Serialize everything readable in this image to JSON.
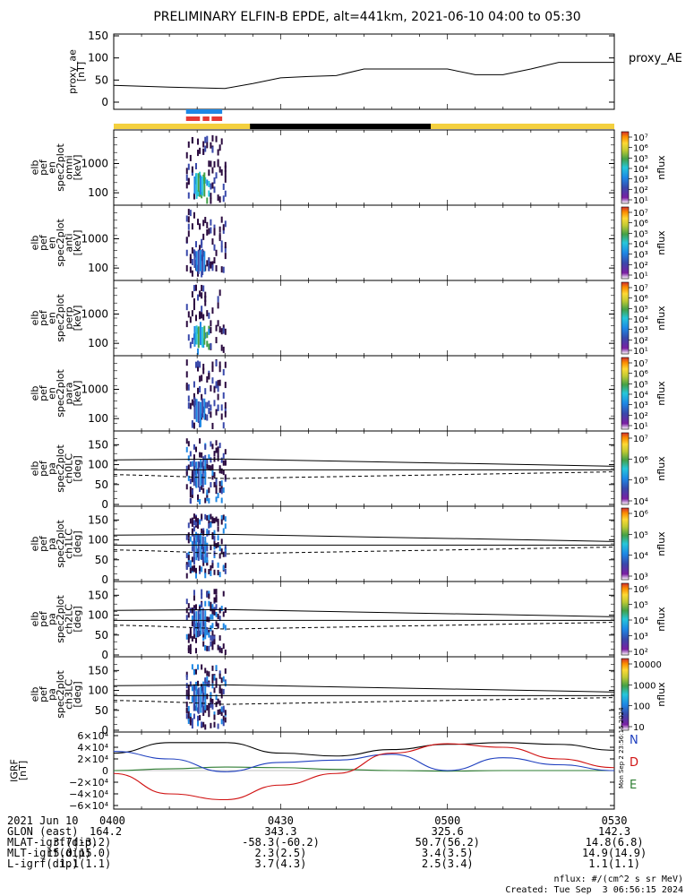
{
  "title": "PRELIMINARY ELFIN-B EPDE, alt=441km, 2021-06-10 04:00 to 05:30",
  "chart_data": {
    "type": "line",
    "time_range": [
      "2021-06-10 04:00",
      "2021-06-10 05:30"
    ],
    "x_tick_labels": [
      "0400",
      "0430",
      "0500",
      "0530"
    ],
    "panels": [
      {
        "id": "proxy_ae",
        "type": "line",
        "ylabel": [
          "proxy_ae",
          "[nT]"
        ],
        "legend": "proxy_AE",
        "ylim": [
          0,
          150
        ],
        "y_ticks": [
          "150",
          "100",
          "50",
          "0"
        ],
        "x_minutes": [
          0,
          10,
          20,
          25,
          30,
          35,
          40,
          45,
          50,
          55,
          60,
          65,
          70,
          75,
          80,
          85,
          90
        ],
        "values": [
          38,
          34,
          31,
          42,
          55,
          58,
          60,
          75,
          75,
          75,
          75,
          62,
          62,
          75,
          90,
          90,
          90
        ]
      },
      {
        "id": "spec_omni",
        "type": "heatmap",
        "ylabel": [
          "elb",
          "pef",
          "en",
          "spec2plot",
          "omni",
          "[keV]"
        ],
        "y_ticks": [
          "1000",
          "100"
        ],
        "colorbar_ticks": [
          "10⁷",
          "10⁶",
          "10⁵",
          "10⁴",
          "10³",
          "10²",
          "10¹"
        ],
        "colorbar_label": "nflux"
      },
      {
        "id": "spec_anti",
        "type": "heatmap",
        "ylabel": [
          "elb",
          "pef",
          "en",
          "spec2plot",
          "anti",
          "[keV]"
        ],
        "y_ticks": [
          "1000",
          "100"
        ],
        "colorbar_ticks": [
          "10⁷",
          "10⁶",
          "10⁵",
          "10⁴",
          "10³",
          "10²",
          "10¹"
        ],
        "colorbar_label": "nflux"
      },
      {
        "id": "spec_perp",
        "type": "heatmap",
        "ylabel": [
          "elb",
          "pef",
          "en",
          "spec2plot",
          "perp",
          "[keV]"
        ],
        "y_ticks": [
          "1000",
          "100"
        ],
        "colorbar_ticks": [
          "10⁷",
          "10⁶",
          "10⁵",
          "10⁴",
          "10³",
          "10²",
          "10¹"
        ],
        "colorbar_label": "nflux"
      },
      {
        "id": "spec_para",
        "type": "heatmap",
        "ylabel": [
          "elb",
          "pef",
          "en",
          "spec2plot",
          "para",
          "[keV]"
        ],
        "y_ticks": [
          "1000",
          "100"
        ],
        "colorbar_ticks": [
          "10⁷",
          "10⁶",
          "10⁵",
          "10⁴",
          "10³",
          "10²",
          "10¹"
        ],
        "colorbar_label": "nflux"
      },
      {
        "id": "pa_ch0",
        "type": "heatmap",
        "ylabel": [
          "elb",
          "pef",
          "pa",
          "spec2plot",
          "ch0LC",
          "[deg]"
        ],
        "y_ticks": [
          "150",
          "100",
          "50",
          "0"
        ],
        "colorbar_ticks": [
          "10⁷",
          "10⁶",
          "10⁵",
          "10⁴"
        ],
        "colorbar_label": "nflux"
      },
      {
        "id": "pa_ch1",
        "type": "heatmap",
        "ylabel": [
          "elb",
          "pef",
          "pa",
          "spec2plot",
          "ch1LC",
          "[deg]"
        ],
        "y_ticks": [
          "150",
          "100",
          "50",
          "0"
        ],
        "colorbar_ticks": [
          "10⁶",
          "10⁵",
          "10⁴",
          "10³"
        ],
        "colorbar_label": "nflux"
      },
      {
        "id": "pa_ch2",
        "type": "heatmap",
        "ylabel": [
          "elb",
          "pef",
          "pa",
          "spec2plot",
          "ch2LC",
          "[deg]"
        ],
        "y_ticks": [
          "150",
          "100",
          "50",
          "0"
        ],
        "colorbar_ticks": [
          "10⁶",
          "10⁵",
          "10⁴",
          "10³",
          "10²"
        ],
        "colorbar_label": "nflux"
      },
      {
        "id": "pa_ch3",
        "type": "heatmap",
        "ylabel": [
          "elb",
          "pef",
          "pa",
          "spec2plot",
          "ch3LC",
          "[deg]"
        ],
        "y_ticks": [
          "150",
          "100",
          "50",
          "0"
        ],
        "colorbar_ticks": [
          "10000",
          "1000",
          "100",
          "10"
        ],
        "colorbar_label": "nflux"
      },
      {
        "id": "igrf",
        "type": "line",
        "ylabel": [
          "IGRF",
          "[nT]"
        ],
        "ylim": [
          -60000,
          60000
        ],
        "y_ticks": [
          "6×10⁴",
          "4×10⁴",
          "2×10⁴",
          "0",
          "−2×10⁴",
          "−4×10⁴",
          "−6×10⁴"
        ],
        "legend": [
          "N",
          "D",
          "E"
        ],
        "x_minutes": [
          0,
          10,
          20,
          30,
          40,
          50,
          60,
          70,
          80,
          90
        ],
        "series": [
          {
            "name": "N",
            "color": "#000000",
            "values": [
              30000,
              48000,
              48000,
              30000,
              25000,
              36000,
              45000,
              48000,
              45000,
              35000
            ]
          },
          {
            "name": "E",
            "color": "#2e7d32",
            "values": [
              0,
              3000,
              6000,
              5000,
              2000,
              0,
              -1000,
              0,
              0,
              0
            ]
          },
          {
            "name": "D",
            "color": "#1e3fbf",
            "values": [
              33000,
              20000,
              -2000,
              14000,
              18000,
              28000,
              0,
              22000,
              10000,
              0
            ]
          },
          {
            "name": "D_red",
            "color": "#d01010",
            "values": [
              -5000,
              -40000,
              -50000,
              -25000,
              -5000,
              30000,
              46000,
              40000,
              20000,
              5000
            ]
          }
        ]
      }
    ],
    "ae_label": "proxy_AE"
  },
  "footer": {
    "rows": [
      {
        "label": "2021 Jun 10",
        "values": [
          "0400",
          "0430",
          "0500",
          "0530"
        ]
      },
      {
        "label": "GLON (east)",
        "values": [
          "164.2",
          "343.3",
          "325.6",
          "142.3"
        ]
      },
      {
        "label": "MLAT-igrf(dip)",
        "values": [
          "3.7(-3.2)",
          "-58.3(-60.2)",
          "50.7(56.2)",
          "14.8(6.8)"
        ]
      },
      {
        "label": "MLT-igrf(dip)",
        "values": [
          "15.0(15.0)",
          "2.3(2.5)",
          "3.4(3.5)",
          "14.9(14.9)"
        ]
      },
      {
        "label": "L-igrf(dip)",
        "values": [
          "1.1(1.1)",
          "3.7(4.3)",
          "2.5(3.4)",
          "1.1(1.1)"
        ]
      }
    ],
    "nflux_units": "nflux: #/(cm^2 s sr MeV)",
    "created": "Created: Tue Sep  3 06:56:15 2024",
    "side_stamp": "Mon Sep  2 23:56:15 2024"
  },
  "colors": {
    "sun_bar": "#f4d03f",
    "shadow_bar": "#000000",
    "blue_bar": "#1e88e5",
    "red_bar": "#e53935"
  }
}
